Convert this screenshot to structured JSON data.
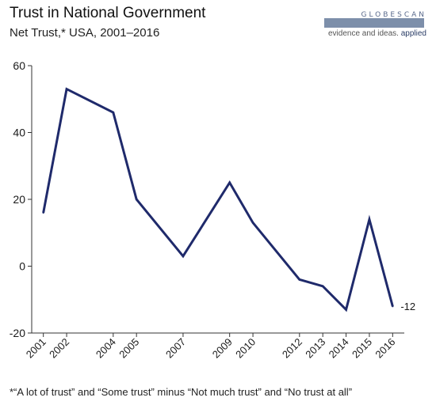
{
  "header": {
    "title": "Trust in National Government",
    "subtitle": "Net Trust,* USA, 2001–2016"
  },
  "logo": {
    "wordmark": "GLOBESCAN",
    "tagline_prefix": "evidence and ideas.",
    "tagline_emphasis": "applied"
  },
  "footnote": "*“A lot of trust” and “Some trust” minus “Not much trust” and “No trust at all”",
  "colors": {
    "line": "#1f2a6b",
    "axis": "#333333",
    "text": "#1a1a1a"
  },
  "chart_data": {
    "type": "line",
    "title": "Trust in National Government",
    "subtitle": "Net Trust,* USA, 2001–2016",
    "xlabel": "",
    "ylabel": "",
    "x": [
      2001,
      2002,
      2004,
      2005,
      2007,
      2009,
      2010,
      2012,
      2013,
      2014,
      2015,
      2016
    ],
    "x_tick_labels": [
      "2001",
      "2002",
      "2004",
      "2005",
      "2007",
      "2009",
      "2010",
      "2012",
      "2013",
      "2014",
      "2015",
      "2016"
    ],
    "series": [
      {
        "values": [
          16,
          53,
          46,
          20,
          3,
          25,
          13,
          -4,
          -6,
          -13,
          14,
          -12
        ]
      }
    ],
    "ylim": [
      -20,
      60
    ],
    "y_ticks": [
      -20,
      0,
      20,
      40,
      60
    ],
    "x_range": [
      2000.5,
      2016.5
    ],
    "grid": false,
    "legend": "none",
    "data_labels": [
      {
        "x": 2016,
        "text": "-12"
      }
    ]
  }
}
